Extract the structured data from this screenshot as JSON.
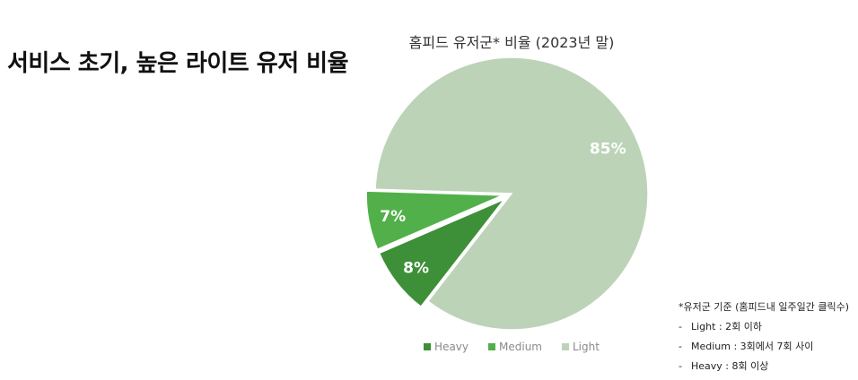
{
  "slide": {
    "title": "서비스 초기, 높은 라이트 유저 비율"
  },
  "chart_data": {
    "type": "pie",
    "title": "홈피드 유저군* 비율 (2023년 말)",
    "series": [
      {
        "name": "Heavy",
        "value": 8,
        "label": "8%",
        "color": "#3d8f38"
      },
      {
        "name": "Medium",
        "value": 7,
        "label": "7%",
        "color": "#52b04a"
      },
      {
        "name": "Light",
        "value": 85,
        "label": "85%",
        "color": "#bcd3b8"
      }
    ],
    "legend_position": "bottom"
  },
  "notes": {
    "heading": "*유저군 기준 (홈피드내 일주일간 클릭수)",
    "items": [
      "Light : 2회 이하",
      "Medium : 3회에서 7회 사이",
      "Heavy : 8회 이상"
    ],
    "bullet": "-"
  }
}
